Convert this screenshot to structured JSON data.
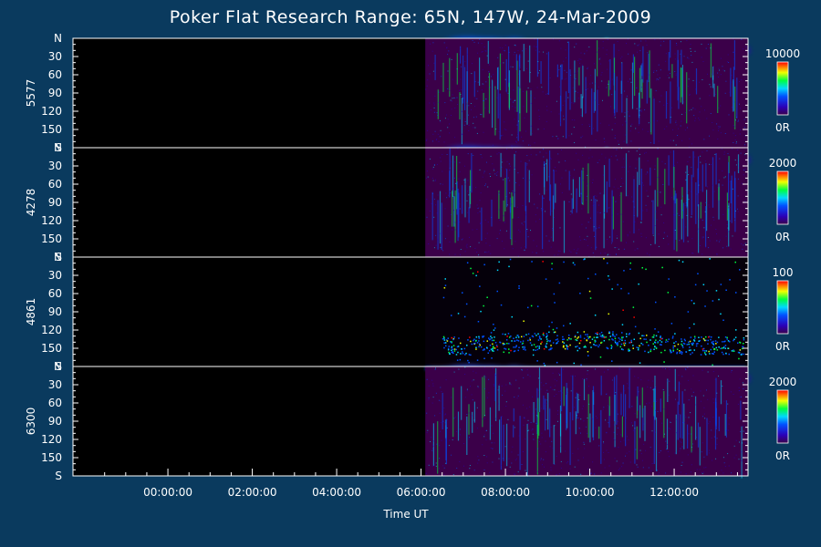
{
  "chart_data": {
    "type": "heatmap",
    "title": "Poker Flat Research Range: 65N, 147W, 24-Mar-2009",
    "xlabel": "Time UT",
    "x_ticks": [
      "00:00:00",
      "02:00:00",
      "04:00:00",
      "06:00:00",
      "08:00:00",
      "10:00:00",
      "12:00:00"
    ],
    "x_range_hours": [
      -2.25,
      13.75
    ],
    "y_ticks": [
      "N",
      "30",
      "60",
      "90",
      "120",
      "150",
      "S"
    ],
    "y_range_deg": [
      0,
      180
    ],
    "panels": [
      {
        "wavelength": "5577",
        "colorbar_max": "10000",
        "colorbar_min": "0R"
      },
      {
        "wavelength": "4278",
        "colorbar_max": "2000",
        "colorbar_min": "0R"
      },
      {
        "wavelength": "4861",
        "colorbar_max": "100",
        "colorbar_min": "0R"
      },
      {
        "wavelength": "6300",
        "colorbar_max": "2000",
        "colorbar_min": "0R"
      }
    ],
    "data_start_hour": 6.1,
    "data_end_hour": 13.75,
    "color_scale": [
      "#3b0049",
      "#2b00b8",
      "#0050ff",
      "#00d8ff",
      "#00ff40",
      "#f0ff00",
      "#ff8000",
      "#ff0000"
    ]
  }
}
